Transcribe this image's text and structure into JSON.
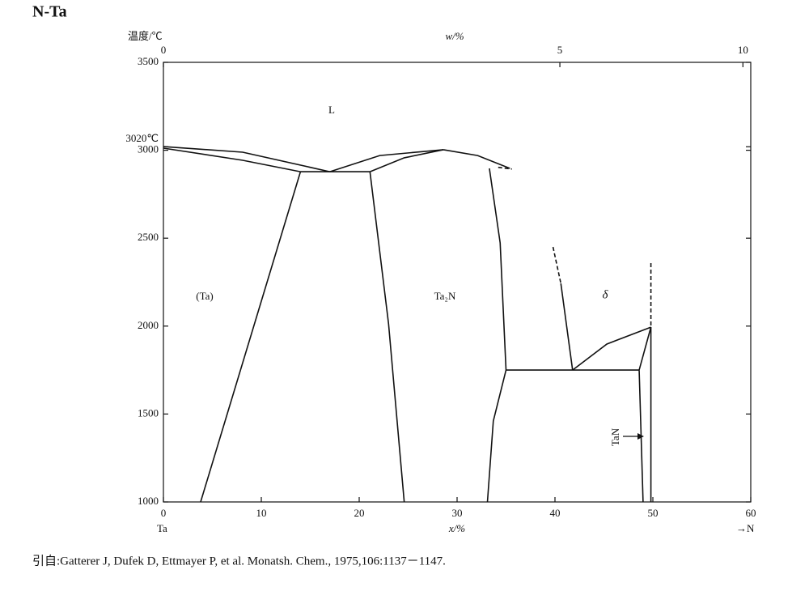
{
  "chart_data": {
    "type": "phase-diagram",
    "title": "N-Ta",
    "y_label": "温度/℃",
    "x_label": "x/%",
    "x2_label": "w/%",
    "x_start_label": "Ta",
    "x_end_label": "→N",
    "xlim": [
      0,
      60
    ],
    "xticks": [
      0,
      10,
      20,
      30,
      40,
      50,
      60
    ],
    "x2ticks": [
      {
        "value": 0,
        "label": "0"
      },
      {
        "value": 40.5,
        "label": "5"
      },
      {
        "value": 59.2,
        "label": "10"
      }
    ],
    "ylim": [
      1000,
      3500
    ],
    "yticks": [
      1000,
      1500,
      2000,
      2500,
      3000,
      3500,
      {
        "value": 3020,
        "label": "3020℃"
      }
    ],
    "color": "#111111",
    "series": [
      {
        "x": [
          0,
          8.1,
          17.0
        ],
        "values": [
          3021,
          2989,
          2878
        ]
      },
      {
        "x": [
          0,
          8.1,
          14.0
        ],
        "values": [
          3012,
          2943,
          2878
        ]
      },
      {
        "x": [
          14.0,
          21.1
        ],
        "values": [
          2878,
          2878
        ]
      },
      {
        "x": [
          17.0,
          22.1,
          28.6
        ],
        "values": [
          2878,
          2970,
          3003
        ]
      },
      {
        "x": [
          21.1,
          24.6,
          28.6
        ],
        "values": [
          2878,
          2957,
          3003
        ]
      },
      {
        "x": [
          28.6,
          32.1,
          35.4
        ],
        "values": [
          3003,
          2970,
          2897
        ]
      },
      {
        "x": [
          34.2,
          35.6
        ],
        "values": [
          2903,
          2893
        ],
        "dashed": true
      },
      {
        "x": [
          14.0,
          3.8
        ],
        "values": [
          2878,
          1000
        ]
      },
      {
        "x": [
          21.1,
          23.0,
          24.6
        ],
        "values": [
          2878,
          2013,
          1000
        ]
      },
      {
        "x": [
          33.3,
          34.4,
          35.0
        ],
        "values": [
          2897,
          2473,
          1750
        ]
      },
      {
        "x": [
          35.0,
          33.7,
          33.1
        ],
        "values": [
          1750,
          1460,
          1000
        ]
      },
      {
        "x": [
          35.0,
          48.6
        ],
        "values": [
          1750,
          1750
        ]
      },
      {
        "x": [
          39.8,
          40.6
        ],
        "values": [
          2450,
          2243
        ],
        "dashed": true
      },
      {
        "x": [
          40.6,
          41.8
        ],
        "values": [
          2243,
          1750
        ]
      },
      {
        "x": [
          41.8,
          45.3,
          49.8
        ],
        "values": [
          1750,
          1898,
          1994
        ]
      },
      {
        "x": [
          49.8,
          48.6
        ],
        "values": [
          1994,
          1750
        ]
      },
      {
        "x": [
          48.6,
          49.0
        ],
        "values": [
          1750,
          1000
        ]
      },
      {
        "x": [
          49.8,
          49.8
        ],
        "values": [
          1994,
          1000
        ]
      },
      {
        "x": [
          49.8,
          49.8
        ],
        "values": [
          2358,
          1994
        ],
        "dashed": true
      }
    ],
    "annotations": [
      "L",
      "(Ta)",
      "Ta₂N",
      "δ",
      "TaN"
    ],
    "source": "引自:Gatterer J, Dufek D, Ettmayer P, et al. Monatsh. Chem., 1975,106:1137－1147."
  }
}
